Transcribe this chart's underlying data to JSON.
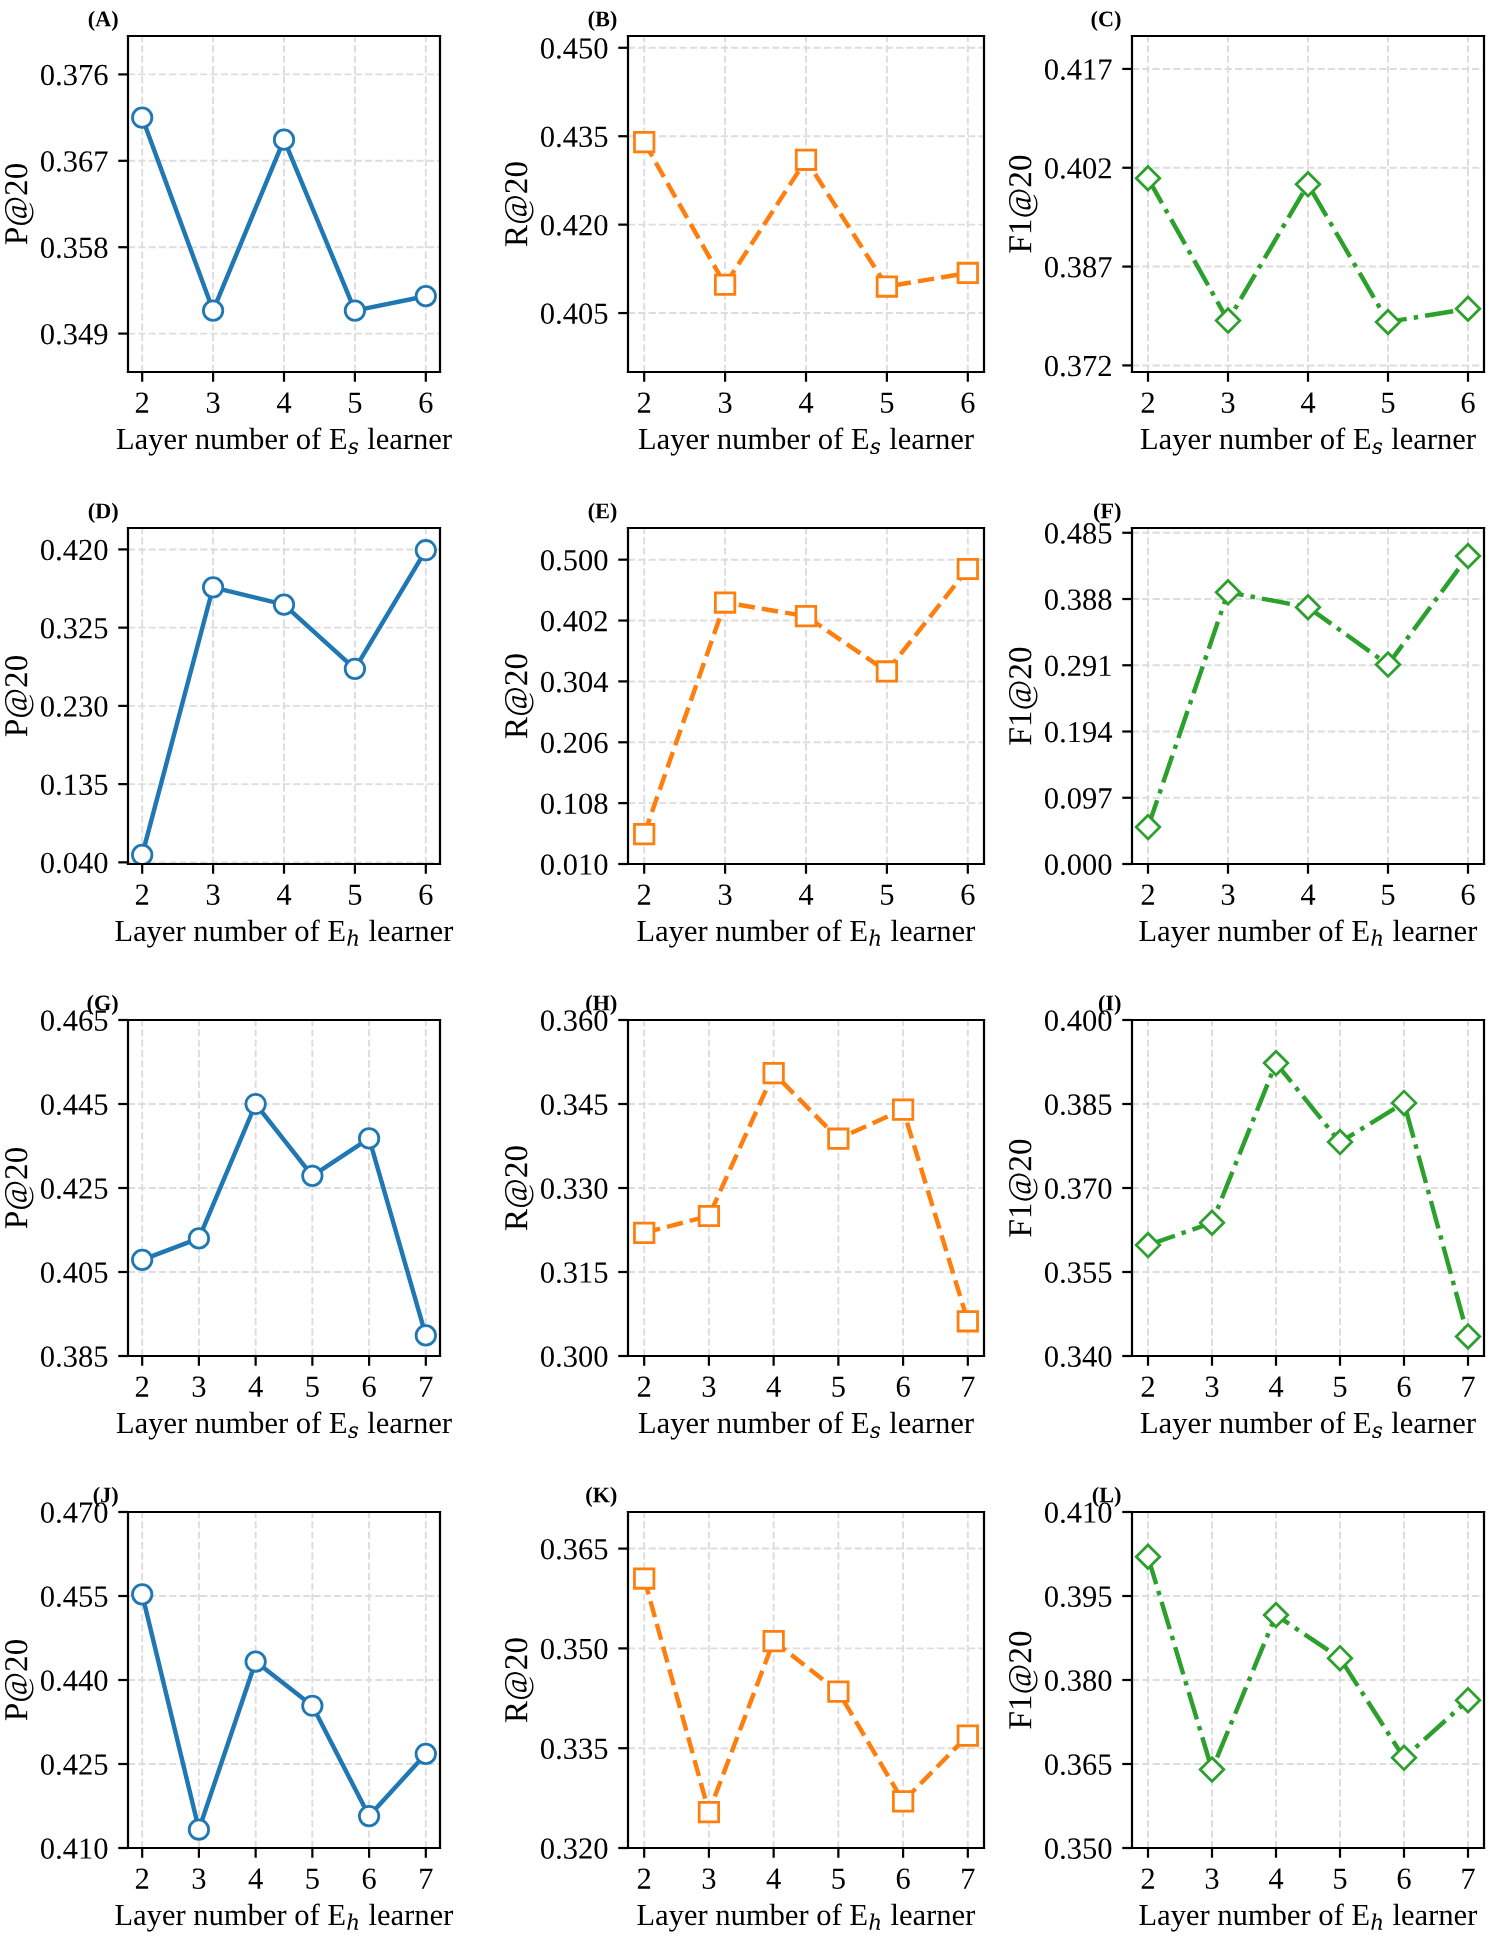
{
  "chart_data": [
    {
      "type": "line",
      "title": "(A)",
      "xlabel": "Layer number of E$_{s}$ learner",
      "ylabel": "P@20",
      "x": [
        2,
        3,
        4,
        5,
        6
      ],
      "xlim": [
        1.8,
        6.2
      ],
      "xticks": [
        2,
        3,
        4,
        5,
        6
      ],
      "ylim": [
        0.345,
        0.38
      ],
      "yticks": [
        {
          "value": 0.349,
          "label": "0.349"
        },
        {
          "value": 0.358,
          "label": "0.358"
        },
        {
          "value": 0.367,
          "label": "0.367"
        },
        {
          "value": 0.376,
          "label": "0.376"
        }
      ],
      "grid": true,
      "marker": "circle",
      "line_style": "solid",
      "series": [
        {
          "color": "#1f77b4",
          "values": [
            0.3715,
            0.3514,
            0.3692,
            0.3514,
            0.3529
          ]
        }
      ]
    },
    {
      "type": "line",
      "title": "(B)",
      "xlabel": "Layer number of E$_{s}$ learner",
      "ylabel": "R@20",
      "x": [
        2,
        3,
        4,
        5,
        6
      ],
      "xlim": [
        1.8,
        6.2
      ],
      "xticks": [
        2,
        3,
        4,
        5,
        6
      ],
      "ylim": [
        0.395,
        0.452
      ],
      "yticks": [
        {
          "value": 0.405,
          "label": "0.405"
        },
        {
          "value": 0.42,
          "label": "0.420"
        },
        {
          "value": 0.435,
          "label": "0.435"
        },
        {
          "value": 0.45,
          "label": "0.450"
        }
      ],
      "grid": true,
      "marker": "square",
      "line_style": "dashed",
      "series": [
        {
          "color": "#ff7f0e",
          "values": [
            0.434,
            0.4098,
            0.431,
            0.4095,
            0.4118
          ]
        }
      ]
    },
    {
      "type": "line",
      "title": "(C)",
      "xlabel": "Layer number of E$_{s}$ learner",
      "ylabel": "F1@20",
      "x": [
        2,
        3,
        4,
        5,
        6
      ],
      "xlim": [
        1.8,
        6.2
      ],
      "xticks": [
        2,
        3,
        4,
        5,
        6
      ],
      "ylim": [
        0.371,
        0.422
      ],
      "yticks": [
        {
          "value": 0.372,
          "label": "0.372"
        },
        {
          "value": 0.387,
          "label": "0.387"
        },
        {
          "value": 0.402,
          "label": "0.402"
        },
        {
          "value": 0.417,
          "label": "0.417"
        }
      ],
      "grid": true,
      "marker": "diamond",
      "line_style": "dashdot",
      "series": [
        {
          "color": "#2ca02c",
          "values": [
            0.4004,
            0.3788,
            0.3995,
            0.3786,
            0.3806
          ]
        }
      ]
    },
    {
      "type": "line",
      "title": "(D)",
      "xlabel": "Layer number of E$_{h}$ learner",
      "ylabel": "P@20",
      "x": [
        2,
        3,
        4,
        5,
        6
      ],
      "xlim": [
        1.8,
        6.2
      ],
      "xticks": [
        2,
        3,
        4,
        5,
        6
      ],
      "ylim": [
        0.038,
        0.446
      ],
      "yticks": [
        {
          "value": 0.04,
          "label": "0.040"
        },
        {
          "value": 0.135,
          "label": "0.135"
        },
        {
          "value": 0.23,
          "label": "0.230"
        },
        {
          "value": 0.325,
          "label": "0.325"
        },
        {
          "value": 0.42,
          "label": "0.420"
        }
      ],
      "grid": true,
      "marker": "circle",
      "line_style": "solid",
      "series": [
        {
          "color": "#1f77b4",
          "values": [
            0.049,
            0.374,
            0.353,
            0.275,
            0.419
          ]
        }
      ]
    },
    {
      "type": "line",
      "title": "(E)",
      "xlabel": "Layer number of E$_{h}$ learner",
      "ylabel": "R@20",
      "x": [
        2,
        3,
        4,
        5,
        6
      ],
      "xlim": [
        1.8,
        6.2
      ],
      "xticks": [
        2,
        3,
        4,
        5,
        6
      ],
      "ylim": [
        0.01,
        0.551
      ],
      "yticks": [
        {
          "value": 0.01,
          "label": "0.010"
        },
        {
          "value": 0.108,
          "label": "0.108"
        },
        {
          "value": 0.206,
          "label": "0.206"
        },
        {
          "value": 0.304,
          "label": "0.304"
        },
        {
          "value": 0.402,
          "label": "0.402"
        },
        {
          "value": 0.5,
          "label": "0.500"
        }
      ],
      "grid": true,
      "marker": "square",
      "line_style": "dashed",
      "series": [
        {
          "color": "#ff7f0e",
          "values": [
            0.058,
            0.431,
            0.409,
            0.32,
            0.485
          ]
        }
      ]
    },
    {
      "type": "line",
      "title": "(F)",
      "xlabel": "Layer number of E$_{h}$ learner",
      "ylabel": "F1@20",
      "x": [
        2,
        3,
        4,
        5,
        6
      ],
      "xlim": [
        1.8,
        6.2
      ],
      "xticks": [
        2,
        3,
        4,
        5,
        6
      ],
      "ylim": [
        0.0,
        0.492
      ],
      "yticks": [
        {
          "value": 0.0,
          "label": "0.000"
        },
        {
          "value": 0.097,
          "label": "0.097"
        },
        {
          "value": 0.194,
          "label": "0.194"
        },
        {
          "value": 0.291,
          "label": "0.291"
        },
        {
          "value": 0.388,
          "label": "0.388"
        },
        {
          "value": 0.485,
          "label": "0.485"
        }
      ],
      "grid": true,
      "marker": "diamond",
      "line_style": "dashdot",
      "series": [
        {
          "color": "#2ca02c",
          "values": [
            0.054,
            0.398,
            0.376,
            0.292,
            0.451
          ]
        }
      ]
    },
    {
      "type": "line",
      "title": "(G)",
      "xlabel": "Layer number of E$_{s}$ learner",
      "ylabel": "P@20",
      "x": [
        2,
        3,
        4,
        5,
        6,
        7
      ],
      "xlim": [
        1.75,
        7.25
      ],
      "xticks": [
        2,
        3,
        4,
        5,
        6,
        7
      ],
      "ylim": [
        0.385,
        0.465
      ],
      "yticks": [
        {
          "value": 0.385,
          "label": "0.385"
        },
        {
          "value": 0.405,
          "label": "0.405"
        },
        {
          "value": 0.425,
          "label": "0.425"
        },
        {
          "value": 0.445,
          "label": "0.445"
        },
        {
          "value": 0.465,
          "label": "0.465"
        }
      ],
      "grid": true,
      "marker": "circle",
      "line_style": "solid",
      "series": [
        {
          "color": "#1f77b4",
          "values": [
            0.4079,
            0.413,
            0.445,
            0.4279,
            0.4368,
            0.3899
          ]
        }
      ]
    },
    {
      "type": "line",
      "title": "(H)",
      "xlabel": "Layer number of E$_{s}$ learner",
      "ylabel": "R@20",
      "x": [
        2,
        3,
        4,
        5,
        6,
        7
      ],
      "xlim": [
        1.75,
        7.25
      ],
      "xticks": [
        2,
        3,
        4,
        5,
        6,
        7
      ],
      "ylim": [
        0.3,
        0.36
      ],
      "yticks": [
        {
          "value": 0.3,
          "label": "0.300"
        },
        {
          "value": 0.315,
          "label": "0.315"
        },
        {
          "value": 0.33,
          "label": "0.330"
        },
        {
          "value": 0.345,
          "label": "0.345"
        },
        {
          "value": 0.36,
          "label": "0.360"
        }
      ],
      "grid": true,
      "marker": "square",
      "line_style": "dashed",
      "series": [
        {
          "color": "#ff7f0e",
          "values": [
            0.322,
            0.325,
            0.3505,
            0.3388,
            0.344,
            0.3062
          ]
        }
      ]
    },
    {
      "type": "line",
      "title": "(I)",
      "xlabel": "Layer number of E$_{s}$ learner",
      "ylabel": "F1@20",
      "x": [
        2,
        3,
        4,
        5,
        6,
        7
      ],
      "xlim": [
        1.75,
        7.25
      ],
      "xticks": [
        2,
        3,
        4,
        5,
        6,
        7
      ],
      "ylim": [
        0.34,
        0.4
      ],
      "yticks": [
        {
          "value": 0.34,
          "label": "0.340"
        },
        {
          "value": 0.355,
          "label": "0.355"
        },
        {
          "value": 0.37,
          "label": "0.370"
        },
        {
          "value": 0.385,
          "label": "0.385"
        },
        {
          "value": 0.4,
          "label": "0.400"
        }
      ],
      "grid": true,
      "marker": "diamond",
      "line_style": "dashdot",
      "series": [
        {
          "color": "#2ca02c",
          "values": [
            0.3598,
            0.3638,
            0.3923,
            0.3782,
            0.3852,
            0.3435
          ]
        }
      ]
    },
    {
      "type": "line",
      "title": "(J)",
      "xlabel": "Layer number of E$_{h}$ learner",
      "ylabel": "P@20",
      "x": [
        2,
        3,
        4,
        5,
        6,
        7
      ],
      "xlim": [
        1.75,
        7.25
      ],
      "xticks": [
        2,
        3,
        4,
        5,
        6,
        7
      ],
      "ylim": [
        0.41,
        0.47
      ],
      "yticks": [
        {
          "value": 0.41,
          "label": "0.410"
        },
        {
          "value": 0.425,
          "label": "0.425"
        },
        {
          "value": 0.44,
          "label": "0.440"
        },
        {
          "value": 0.455,
          "label": "0.455"
        },
        {
          "value": 0.47,
          "label": "0.470"
        }
      ],
      "grid": true,
      "marker": "circle",
      "line_style": "solid",
      "series": [
        {
          "color": "#1f77b4",
          "values": [
            0.4553,
            0.4133,
            0.4433,
            0.4354,
            0.4157,
            0.4268
          ]
        }
      ]
    },
    {
      "type": "line",
      "title": "(K)",
      "xlabel": "Layer number of E$_{h}$ learner",
      "ylabel": "R@20",
      "x": [
        2,
        3,
        4,
        5,
        6,
        7
      ],
      "xlim": [
        1.75,
        7.25
      ],
      "xticks": [
        2,
        3,
        4,
        5,
        6,
        7
      ],
      "ylim": [
        0.32,
        0.3705
      ],
      "yticks": [
        {
          "value": 0.32,
          "label": "0.320"
        },
        {
          "value": 0.335,
          "label": "0.335"
        },
        {
          "value": 0.35,
          "label": "0.350"
        },
        {
          "value": 0.365,
          "label": "0.365"
        }
      ],
      "grid": true,
      "marker": "square",
      "line_style": "dashed",
      "series": [
        {
          "color": "#ff7f0e",
          "values": [
            0.3605,
            0.3254,
            0.3511,
            0.3435,
            0.327,
            0.3369
          ]
        }
      ]
    },
    {
      "type": "line",
      "title": "(L)",
      "xlabel": "Layer number of E$_{h}$ learner",
      "ylabel": "F1@20",
      "x": [
        2,
        3,
        4,
        5,
        6,
        7
      ],
      "xlim": [
        1.75,
        7.25
      ],
      "xticks": [
        2,
        3,
        4,
        5,
        6,
        7
      ],
      "ylim": [
        0.35,
        0.41
      ],
      "yticks": [
        {
          "value": 0.35,
          "label": "0.350"
        },
        {
          "value": 0.365,
          "label": "0.365"
        },
        {
          "value": 0.38,
          "label": "0.380"
        },
        {
          "value": 0.395,
          "label": "0.395"
        },
        {
          "value": 0.41,
          "label": "0.410"
        }
      ],
      "grid": true,
      "marker": "diamond",
      "line_style": "dashdot",
      "series": [
        {
          "color": "#2ca02c",
          "values": [
            0.402,
            0.364,
            0.3916,
            0.3839,
            0.3661,
            0.3764
          ]
        }
      ]
    }
  ]
}
